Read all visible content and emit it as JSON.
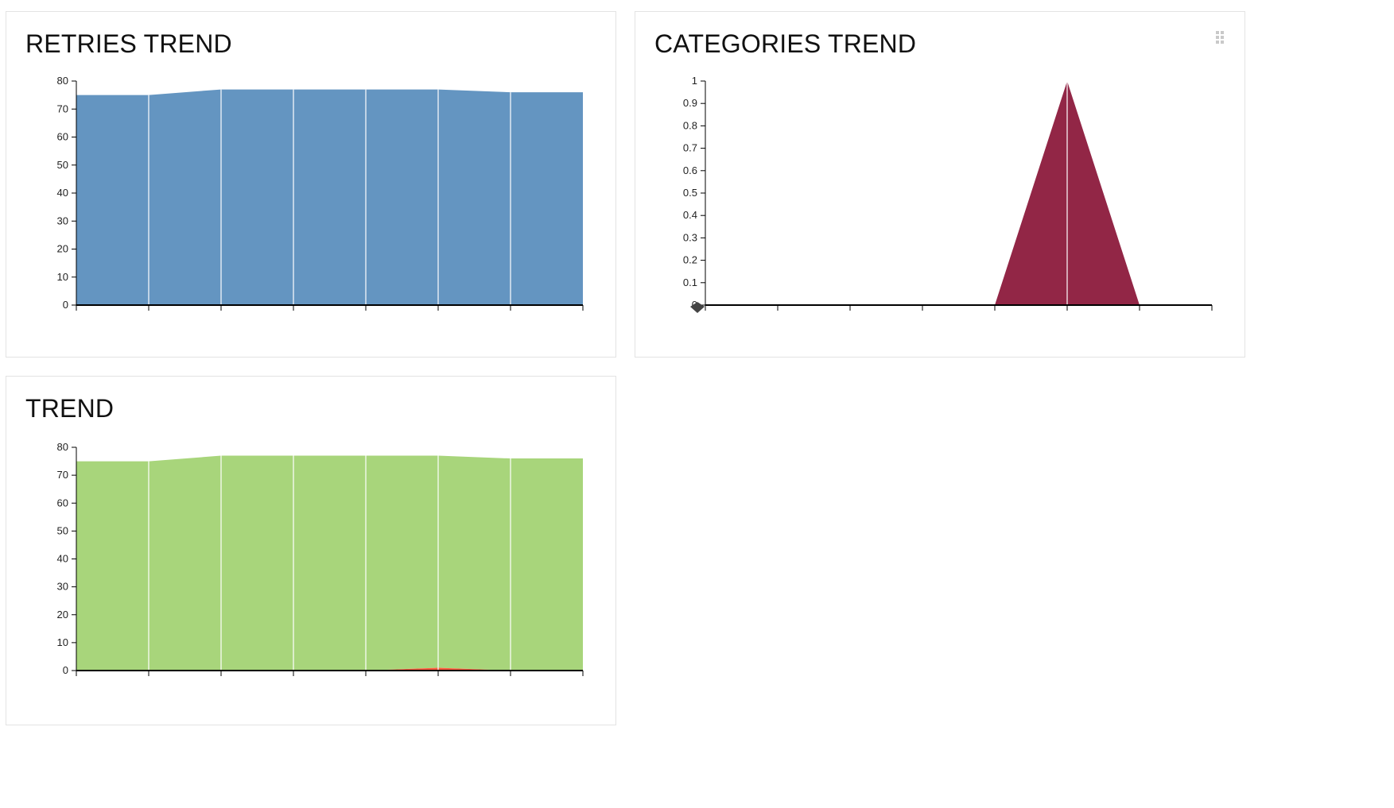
{
  "widgets": [
    {
      "title": "RETRIES TREND",
      "chart_data": {
        "type": "area",
        "title": "RETRIES TREND",
        "xlabel": "",
        "ylabel": "",
        "x": [
          0,
          1,
          2,
          3,
          4,
          5,
          6,
          7
        ],
        "xtick_labels": [
          "",
          "",
          "",
          "",
          "",
          "",
          "",
          ""
        ],
        "ylim": [
          0,
          80
        ],
        "yticks": [
          0,
          10,
          20,
          30,
          40,
          50,
          60,
          70,
          80
        ],
        "ytick_labels": [
          "0",
          "10",
          "20",
          "30",
          "40",
          "50",
          "60",
          "70",
          "80"
        ],
        "grid": false,
        "legend": "none",
        "series": [
          {
            "values": [
              75,
              75,
              77,
              77,
              77,
              77,
              76,
              76
            ],
            "color": "#6495c1"
          }
        ]
      }
    },
    {
      "title": "CATEGORIES TREND",
      "chart_data": {
        "type": "area",
        "title": "CATEGORIES TREND",
        "xlabel": "",
        "ylabel": "",
        "x": [
          0,
          1,
          2,
          3,
          4,
          5,
          6,
          7
        ],
        "xtick_labels": [
          "",
          "",
          "",
          "",
          "",
          "",
          "",
          ""
        ],
        "ylim": [
          0,
          1
        ],
        "yticks": [
          0,
          0.1,
          0.2,
          0.3,
          0.4,
          0.5,
          0.6,
          0.7,
          0.8,
          0.9,
          1
        ],
        "ytick_labels": [
          "0",
          "0.1",
          "0.2",
          "0.3",
          "0.4",
          "0.5",
          "0.6",
          "0.7",
          "0.8",
          "0.9",
          "1"
        ],
        "grid": false,
        "legend": "none",
        "series": [
          {
            "values": [
              0,
              0,
              0,
              0,
              0,
              1,
              0,
              0
            ],
            "color": "#922646"
          }
        ]
      }
    },
    {
      "title": "TREND",
      "chart_data": {
        "type": "area",
        "title": "TREND",
        "xlabel": "",
        "ylabel": "",
        "x": [
          0,
          1,
          2,
          3,
          4,
          5,
          6,
          7
        ],
        "xtick_labels": [
          "",
          "",
          "",
          "",
          "",
          "",
          "",
          ""
        ],
        "ylim": [
          0,
          80
        ],
        "yticks": [
          0,
          10,
          20,
          30,
          40,
          50,
          60,
          70,
          80
        ],
        "ytick_labels": [
          "0",
          "10",
          "20",
          "30",
          "40",
          "50",
          "60",
          "70",
          "80"
        ],
        "grid": false,
        "legend": "none",
        "stacked": true,
        "series": [
          {
            "values": [
              0,
              0,
              0,
              0,
              0,
              1,
              0,
              0
            ],
            "color": "#fd5a3e"
          },
          {
            "values": [
              75,
              75,
              77,
              77,
              77,
              76,
              76,
              76
            ],
            "color": "#a8d57b"
          }
        ]
      }
    }
  ],
  "icons": {
    "drag_handle": "drag-handle-icon",
    "marker": "diamond-marker-icon"
  }
}
